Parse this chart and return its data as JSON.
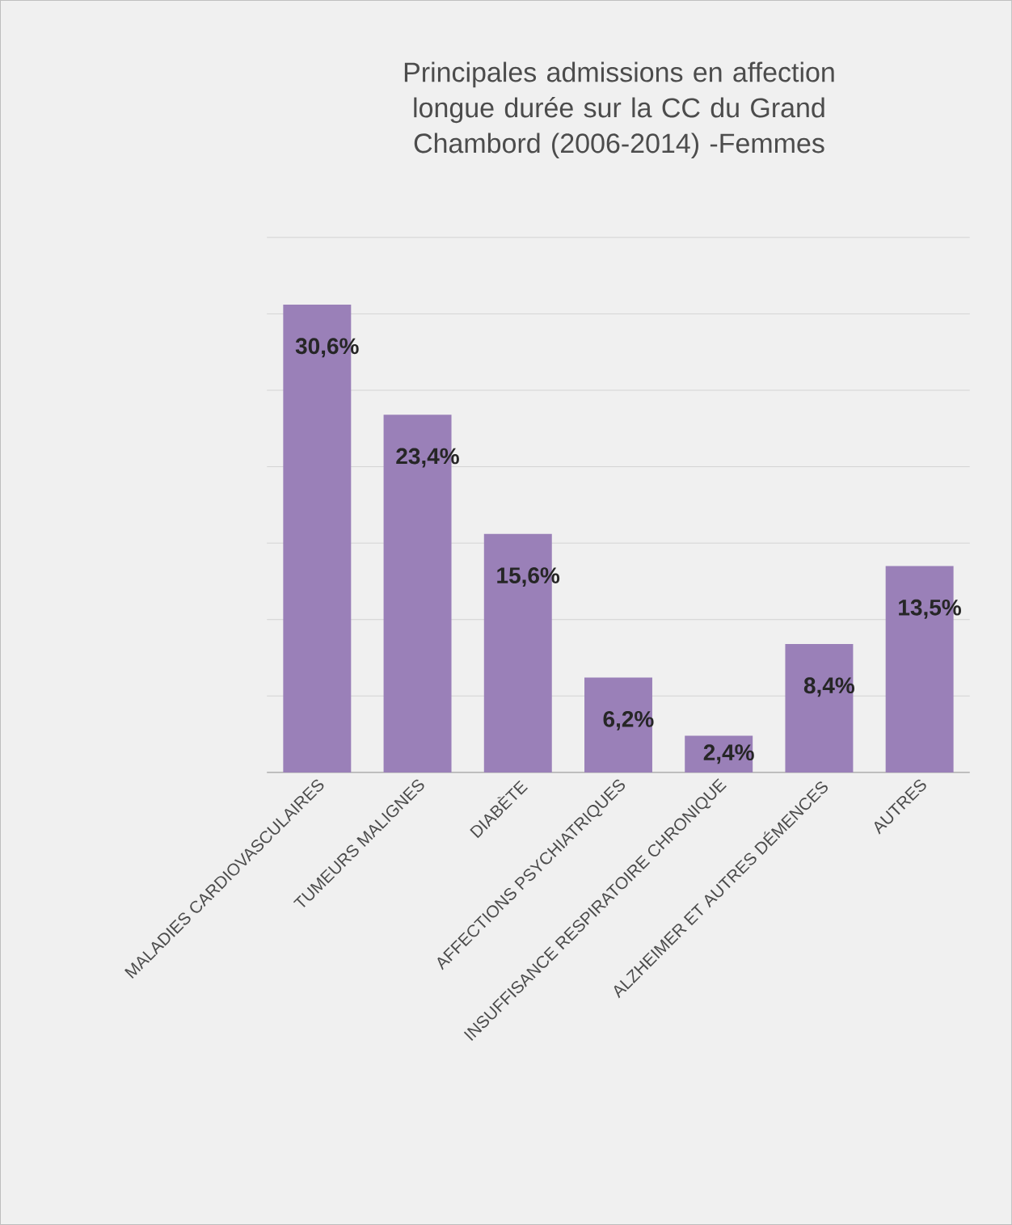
{
  "chart_data": {
    "type": "bar",
    "title": "Principales admissions en affection longue durée sur la CC du Grand Chambord (2006-2014) -Femmes",
    "categories": [
      "MALADIES CARDIOVASCULAIRES",
      "TUMEURS MALIGNES",
      "DIABÈTE",
      "AFFECTIONS PSYCHIATRIQUES",
      "INSUFFISANCE RESPIRATOIRE CHRONIQUE",
      "ALZHEIMER ET AUTRES DÉMENCES",
      "AUTRES"
    ],
    "values": [
      30.6,
      23.4,
      15.6,
      6.2,
      2.4,
      8.4,
      13.5
    ],
    "value_labels": [
      "30,6%",
      "23,4%",
      "15,6%",
      "6,2%",
      "2,4%",
      "8,4%",
      "13,5%"
    ],
    "color": "#9a80b8",
    "grid": "y",
    "tick_labels": "x"
  }
}
